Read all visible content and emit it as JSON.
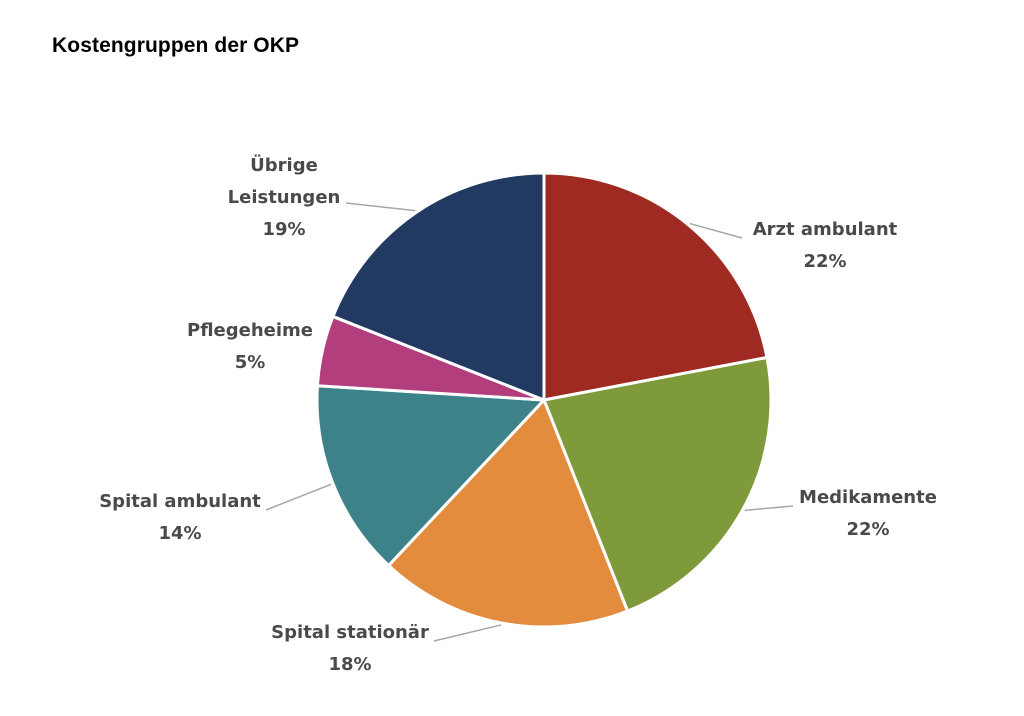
{
  "chart_data": {
    "type": "pie",
    "title": "Kostengruppen der OKP",
    "slices": [
      {
        "lines": [
          "Arzt ambulant"
        ],
        "pct_label": "22%",
        "value": 22,
        "color": "#9e2a22"
      },
      {
        "lines": [
          "Medikamente"
        ],
        "pct_label": "22%",
        "value": 22,
        "color": "#7f9a3a"
      },
      {
        "lines": [
          "Spital stationär"
        ],
        "pct_label": "18%",
        "value": 18,
        "color": "#e38c3d"
      },
      {
        "lines": [
          "Spital ambulant"
        ],
        "pct_label": "14%",
        "value": 14,
        "color": "#3d8289"
      },
      {
        "lines": [
          "Pflegeheime"
        ],
        "pct_label": "5%",
        "value": 5,
        "color": "#b23e7d"
      },
      {
        "lines": [
          "Übrige",
          "Leistungen"
        ],
        "pct_label": "19%",
        "value": 19,
        "color": "#223a61"
      }
    ],
    "start_angle_deg": 0,
    "direction": "clockwise",
    "legend": "none",
    "leader_line_color": "#a6a6a6"
  }
}
